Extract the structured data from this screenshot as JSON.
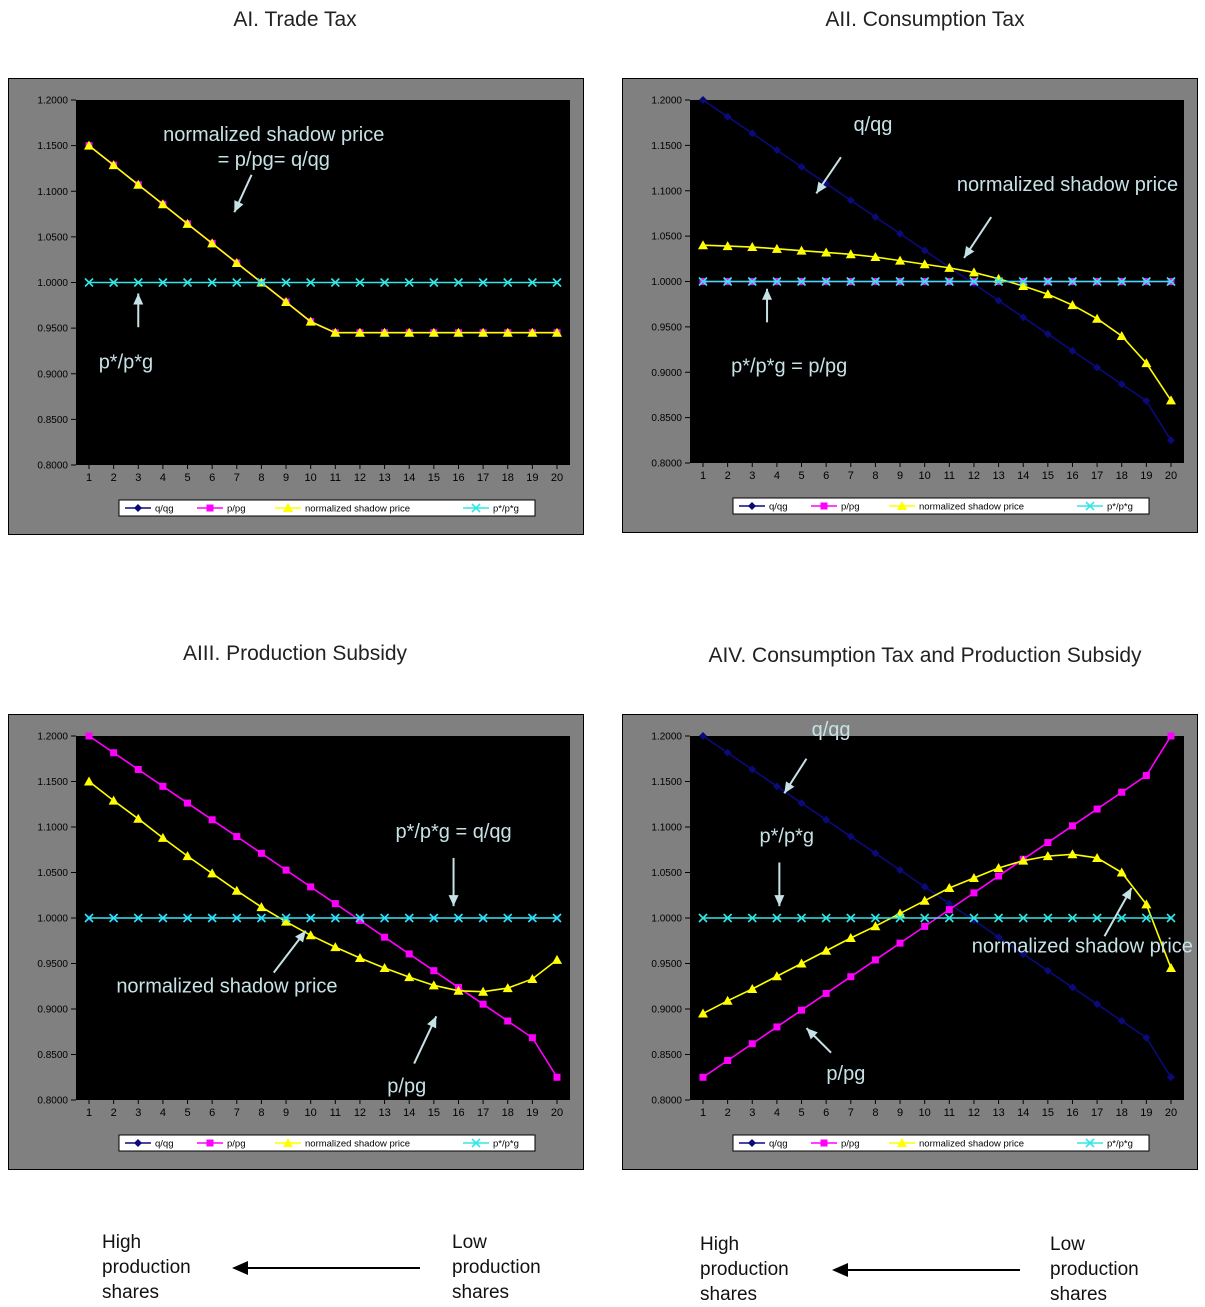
{
  "chart_data": [
    {
      "type": "line",
      "title": "AI. Trade Tax",
      "x": [
        1,
        2,
        3,
        4,
        5,
        6,
        7,
        8,
        9,
        10,
        11,
        12,
        13,
        14,
        15,
        16,
        17,
        18,
        19,
        20
      ],
      "ylim": [
        0.8,
        1.2
      ],
      "yticks": [
        "0.8000",
        "0.8500",
        "0.9000",
        "0.9500",
        "1.0000",
        "1.0500",
        "1.1000",
        "1.1500",
        "1.2000"
      ],
      "series": [
        {
          "name": "q/qg",
          "color": "#0a0a7a",
          "marker": "diamond",
          "values": [
            1.15,
            1.1286,
            1.1071,
            1.0857,
            1.0643,
            1.0429,
            1.0214,
            1.0,
            0.9786,
            0.9571,
            0.945,
            0.945,
            0.945,
            0.945,
            0.945,
            0.945,
            0.945,
            0.945,
            0.945,
            0.945
          ]
        },
        {
          "name": "p/pg",
          "color": "#ff00ff",
          "marker": "square",
          "values": [
            1.15,
            1.1286,
            1.1071,
            1.0857,
            1.0643,
            1.0429,
            1.0214,
            1.0,
            0.9786,
            0.9571,
            0.945,
            0.945,
            0.945,
            0.945,
            0.945,
            0.945,
            0.945,
            0.945,
            0.945,
            0.945
          ]
        },
        {
          "name": "normalized shadow price",
          "color": "#ffff00",
          "marker": "triangle",
          "values": [
            1.15,
            1.1286,
            1.1071,
            1.0857,
            1.0643,
            1.0429,
            1.0214,
            1.0,
            0.9786,
            0.9571,
            0.945,
            0.945,
            0.945,
            0.945,
            0.945,
            0.945,
            0.945,
            0.945,
            0.945,
            0.945
          ]
        },
        {
          "name": "p*/p*g",
          "color": "#33e6e6",
          "marker": "x",
          "values": [
            1,
            1,
            1,
            1,
            1,
            1,
            1,
            1,
            1,
            1,
            1,
            1,
            1,
            1,
            1,
            1,
            1,
            1,
            1,
            1
          ]
        }
      ],
      "annotations": [
        {
          "lines": [
            "normalized shadow price",
            "= p/pg= q/qg"
          ],
          "x": 8.5,
          "y": 1.155,
          "arrow": [
            [
              7.6,
              1.118
            ],
            [
              6.9,
              1.077
            ]
          ]
        },
        {
          "lines": [
            "p*/p*g"
          ],
          "x": 2.5,
          "y": 0.906,
          "arrow": [
            [
              3.0,
              0.951
            ],
            [
              3.0,
              0.988
            ]
          ]
        }
      ]
    },
    {
      "type": "line",
      "title": "AII. Consumption Tax",
      "x": [
        1,
        2,
        3,
        4,
        5,
        6,
        7,
        8,
        9,
        10,
        11,
        12,
        13,
        14,
        15,
        16,
        17,
        18,
        19,
        20
      ],
      "ylim": [
        0.8,
        1.2
      ],
      "yticks": [
        "0.8000",
        "0.8500",
        "0.9000",
        "0.9500",
        "1.0000",
        "1.0500",
        "1.1000",
        "1.1500",
        "1.2000"
      ],
      "series": [
        {
          "name": "q/qg",
          "color": "#0a0a7a",
          "marker": "diamond",
          "values": [
            1.2,
            1.1816,
            1.1632,
            1.1447,
            1.1263,
            1.1079,
            1.0895,
            1.0711,
            1.0526,
            1.0342,
            1.0158,
            0.9974,
            0.9789,
            0.9605,
            0.9421,
            0.9237,
            0.9053,
            0.8868,
            0.8684,
            0.825
          ]
        },
        {
          "name": "p/pg",
          "color": "#ff00ff",
          "marker": "square",
          "values": [
            1,
            1,
            1,
            1,
            1,
            1,
            1,
            1,
            1,
            1,
            1,
            1,
            1,
            1,
            1,
            1,
            1,
            1,
            1,
            1
          ]
        },
        {
          "name": "normalized shadow price",
          "color": "#ffff00",
          "marker": "triangle",
          "values": [
            1.04,
            1.039,
            1.038,
            1.036,
            1.034,
            1.032,
            1.03,
            1.027,
            1.023,
            1.019,
            1.015,
            1.01,
            1.003,
            0.995,
            0.986,
            0.974,
            0.959,
            0.94,
            0.91,
            0.869
          ]
        },
        {
          "name": "p*/p*g",
          "color": "#33e6e6",
          "marker": "x",
          "values": [
            1,
            1,
            1,
            1,
            1,
            1,
            1,
            1,
            1,
            1,
            1,
            1,
            1,
            1,
            1,
            1,
            1,
            1,
            1,
            1
          ]
        }
      ],
      "annotations": [
        {
          "lines": [
            "q/qg"
          ],
          "x": 7.9,
          "y": 1.166,
          "arrow": [
            [
              6.6,
              1.137
            ],
            [
              5.6,
              1.097
            ]
          ]
        },
        {
          "lines": [
            "normalized shadow price"
          ],
          "x": 15.8,
          "y": 1.1,
          "arrow": [
            [
              12.7,
              1.071
            ],
            [
              11.6,
              1.026
            ]
          ]
        },
        {
          "lines": [
            "p*/p*g = p/pg"
          ],
          "x": 4.5,
          "y": 0.9,
          "arrow": [
            [
              3.6,
              0.955
            ],
            [
              3.6,
              0.992
            ]
          ]
        }
      ]
    },
    {
      "type": "line",
      "title": "AIII. Production Subsidy",
      "x": [
        1,
        2,
        3,
        4,
        5,
        6,
        7,
        8,
        9,
        10,
        11,
        12,
        13,
        14,
        15,
        16,
        17,
        18,
        19,
        20
      ],
      "ylim": [
        0.8,
        1.2
      ],
      "yticks": [
        "0.8000",
        "0.8500",
        "0.9000",
        "0.9500",
        "1.0000",
        "1.0500",
        "1.1000",
        "1.1500",
        "1.2000"
      ],
      "series": [
        {
          "name": "q/qg",
          "color": "#0a0a7a",
          "marker": "diamond",
          "values": [
            1,
            1,
            1,
            1,
            1,
            1,
            1,
            1,
            1,
            1,
            1,
            1,
            1,
            1,
            1,
            1,
            1,
            1,
            1,
            1
          ]
        },
        {
          "name": "p/pg",
          "color": "#ff00ff",
          "marker": "square",
          "values": [
            1.2,
            1.1816,
            1.1632,
            1.1447,
            1.1263,
            1.1079,
            1.0895,
            1.0711,
            1.0526,
            1.0342,
            1.0158,
            0.9974,
            0.9789,
            0.9605,
            0.9421,
            0.9237,
            0.9053,
            0.8868,
            0.8684,
            0.825
          ]
        },
        {
          "name": "normalized shadow price",
          "color": "#ffff00",
          "marker": "triangle",
          "values": [
            1.15,
            1.129,
            1.109,
            1.088,
            1.068,
            1.049,
            1.03,
            1.012,
            0.996,
            0.981,
            0.968,
            0.956,
            0.945,
            0.935,
            0.926,
            0.92,
            0.919,
            0.923,
            0.933,
            0.954
          ]
        },
        {
          "name": "p*/p*g",
          "color": "#33e6e6",
          "marker": "x",
          "values": [
            1,
            1,
            1,
            1,
            1,
            1,
            1,
            1,
            1,
            1,
            1,
            1,
            1,
            1,
            1,
            1,
            1,
            1,
            1,
            1
          ]
        }
      ],
      "annotations": [
        {
          "lines": [
            "p*/p*g = q/qg"
          ],
          "x": 15.8,
          "y": 1.088,
          "arrow": [
            [
              15.8,
              1.066
            ],
            [
              15.8,
              1.013
            ]
          ]
        },
        {
          "lines": [
            "normalized shadow price"
          ],
          "x": 6.6,
          "y": 0.918,
          "arrow": [
            [
              8.5,
              0.94
            ],
            [
              9.8,
              0.986
            ]
          ]
        },
        {
          "lines": [
            "p/pg"
          ],
          "x": 13.9,
          "y": 0.808,
          "arrow": [
            [
              14.2,
              0.84
            ],
            [
              15.1,
              0.892
            ]
          ]
        }
      ]
    },
    {
      "type": "line",
      "title": "AIV. Consumption Tax and Production Subsidy",
      "x": [
        1,
        2,
        3,
        4,
        5,
        6,
        7,
        8,
        9,
        10,
        11,
        12,
        13,
        14,
        15,
        16,
        17,
        18,
        19,
        20
      ],
      "ylim": [
        0.8,
        1.2
      ],
      "yticks": [
        "0.8000",
        "0.8500",
        "0.9000",
        "0.9500",
        "1.0000",
        "1.0500",
        "1.1000",
        "1.1500",
        "1.2000"
      ],
      "series": [
        {
          "name": "q/qg",
          "color": "#0a0a7a",
          "marker": "diamond",
          "values": [
            1.2,
            1.1816,
            1.1632,
            1.1447,
            1.1263,
            1.1079,
            1.0895,
            1.0711,
            1.0526,
            1.0342,
            1.0158,
            0.9974,
            0.9789,
            0.9605,
            0.9421,
            0.9237,
            0.9053,
            0.8868,
            0.8684,
            0.825
          ]
        },
        {
          "name": "p/pg",
          "color": "#ff00ff",
          "marker": "square",
          "values": [
            0.825,
            0.8434,
            0.8618,
            0.8803,
            0.8987,
            0.9171,
            0.9355,
            0.9539,
            0.9724,
            0.9908,
            1.0092,
            1.0276,
            1.0461,
            1.0645,
            1.0829,
            1.1013,
            1.1197,
            1.1382,
            1.1566,
            1.2
          ]
        },
        {
          "name": "normalized shadow price",
          "color": "#ffff00",
          "marker": "triangle",
          "values": [
            0.895,
            0.909,
            0.922,
            0.936,
            0.95,
            0.964,
            0.978,
            0.991,
            1.005,
            1.019,
            1.033,
            1.044,
            1.055,
            1.063,
            1.068,
            1.07,
            1.066,
            1.05,
            1.015,
            0.945
          ]
        },
        {
          "name": "p*/p*g",
          "color": "#33e6e6",
          "marker": "x",
          "values": [
            1,
            1,
            1,
            1,
            1,
            1,
            1,
            1,
            1,
            1,
            1,
            1,
            1,
            1,
            1,
            1,
            1,
            1,
            1,
            1
          ]
        }
      ],
      "annotations": [
        {
          "lines": [
            "q/qg"
          ],
          "x": 6.2,
          "y": 1.2,
          "arrow": [
            [
              5.2,
              1.175
            ],
            [
              4.3,
              1.137
            ]
          ]
        },
        {
          "lines": [
            "p*/p*g"
          ],
          "x": 4.4,
          "y": 1.083,
          "arrow": [
            [
              4.1,
              1.061
            ],
            [
              4.1,
              1.013
            ]
          ]
        },
        {
          "lines": [
            "normalized shadow price"
          ],
          "x": 16.4,
          "y": 0.962,
          "arrow": [
            [
              17.3,
              0.98
            ],
            [
              18.4,
              1.033
            ]
          ]
        },
        {
          "lines": [
            "p/pg"
          ],
          "x": 6.8,
          "y": 0.822,
          "arrow": [
            [
              6.2,
              0.852
            ],
            [
              5.2,
              0.879
            ]
          ]
        }
      ]
    }
  ],
  "footers": [
    {
      "left": "High\nproduction\nshares",
      "right": "Low\nproduction\nshares"
    },
    {
      "left": "High\nproduction\nshares",
      "right": "Low\nproduction\nshares"
    }
  ]
}
